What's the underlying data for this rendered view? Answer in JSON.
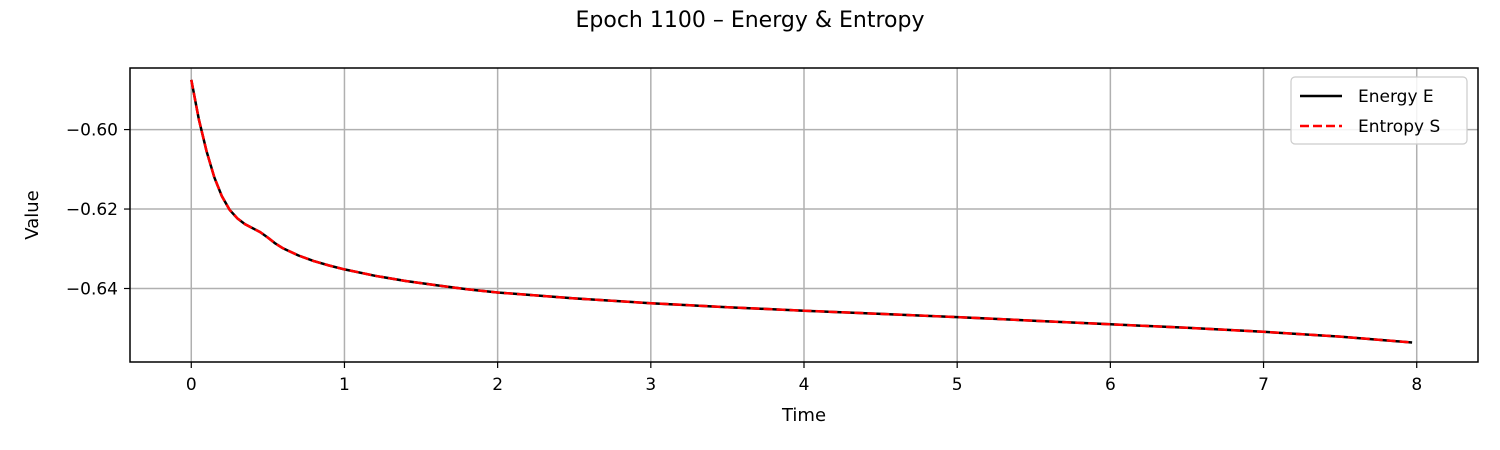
{
  "chart_data": {
    "type": "line",
    "title": "Epoch 1100 – Energy & Entropy",
    "xlabel": "Time",
    "ylabel": "Value",
    "xlim": [
      -0.4,
      8.4
    ],
    "ylim": [
      -0.6585,
      -0.5845
    ],
    "xticks": [
      0,
      1,
      2,
      3,
      4,
      5,
      6,
      7,
      8
    ],
    "xtick_labels": [
      "0",
      "1",
      "2",
      "3",
      "4",
      "5",
      "6",
      "7",
      "8"
    ],
    "yticks": [
      -0.6,
      -0.62,
      -0.64
    ],
    "ytick_labels": [
      "−0.60",
      "−0.62",
      "−0.64"
    ],
    "grid": true,
    "legend_position": "top-right",
    "series": [
      {
        "name": "Energy E",
        "color": "#000000",
        "style": "solid",
        "x": [
          0.0,
          0.05,
          0.1,
          0.15,
          0.2,
          0.25,
          0.3,
          0.35,
          0.4,
          0.45,
          0.5,
          0.55,
          0.6,
          0.7,
          0.8,
          0.9,
          1.0,
          1.2,
          1.4,
          1.6,
          1.8,
          2.0,
          2.5,
          3.0,
          3.5,
          4.0,
          4.5,
          5.0,
          5.5,
          6.0,
          6.5,
          7.0,
          7.5,
          7.97
        ],
        "y": [
          -0.5875,
          -0.5975,
          -0.6055,
          -0.612,
          -0.6168,
          -0.6202,
          -0.6223,
          -0.6238,
          -0.6248,
          -0.6258,
          -0.6272,
          -0.6287,
          -0.6299,
          -0.6317,
          -0.6331,
          -0.6342,
          -0.6352,
          -0.6368,
          -0.6381,
          -0.6392,
          -0.6402,
          -0.641,
          -0.6425,
          -0.6437,
          -0.6447,
          -0.6456,
          -0.6464,
          -0.6472,
          -0.6481,
          -0.649,
          -0.6499,
          -0.6509,
          -0.6521,
          -0.6536
        ]
      },
      {
        "name": "Entropy S",
        "color": "#ff0000",
        "style": "dashed",
        "x": [
          0.0,
          0.05,
          0.1,
          0.15,
          0.2,
          0.25,
          0.3,
          0.35,
          0.4,
          0.45,
          0.5,
          0.55,
          0.6,
          0.7,
          0.8,
          0.9,
          1.0,
          1.2,
          1.4,
          1.6,
          1.8,
          2.0,
          2.5,
          3.0,
          3.5,
          4.0,
          4.5,
          5.0,
          5.5,
          6.0,
          6.5,
          7.0,
          7.5,
          7.97
        ],
        "y": [
          -0.5875,
          -0.5975,
          -0.6055,
          -0.612,
          -0.6168,
          -0.6202,
          -0.6223,
          -0.6238,
          -0.6248,
          -0.6258,
          -0.6272,
          -0.6287,
          -0.6299,
          -0.6317,
          -0.6331,
          -0.6342,
          -0.6352,
          -0.6368,
          -0.6381,
          -0.6392,
          -0.6402,
          -0.641,
          -0.6425,
          -0.6437,
          -0.6447,
          -0.6456,
          -0.6464,
          -0.6472,
          -0.6481,
          -0.649,
          -0.6499,
          -0.6509,
          -0.6521,
          -0.6536
        ]
      }
    ]
  }
}
